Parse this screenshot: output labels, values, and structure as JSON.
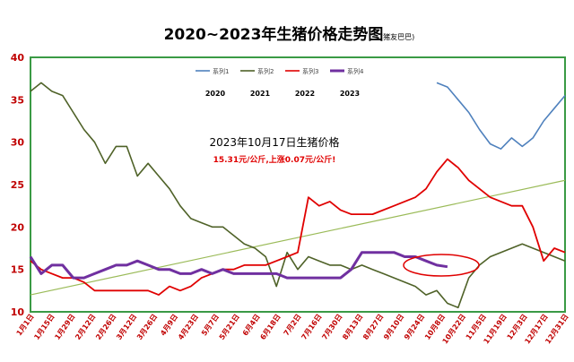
{
  "chart_data": {
    "type": "line",
    "title": "2020~2023年生猪价格走势图",
    "title_note": "(猪友巴巴)",
    "ylim": [
      10,
      40
    ],
    "y_ticks": [
      10,
      15,
      20,
      25,
      30,
      35,
      40
    ],
    "x_ticks": [
      "1月1日",
      "1月15日",
      "1月29日",
      "2月12日",
      "2月26日",
      "3月12日",
      "3月26日",
      "4月9日",
      "4月23日",
      "5月7日",
      "5月21日",
      "6月4日",
      "6月18日",
      "7月2日",
      "7月16日",
      "7月30日",
      "8月13日",
      "8月27日",
      "9月10日",
      "9月24日",
      "10月8日",
      "10月22日",
      "11月5日",
      "11月19日",
      "12月3日",
      "12月17日",
      "12月31日"
    ],
    "grid": false,
    "legend_position": "top-center",
    "series": [
      {
        "name": "系列1",
        "year_label": "2020",
        "color": "#4f81bd",
        "x": [
          0.76,
          0.78,
          0.8,
          0.82,
          0.84,
          0.86,
          0.88,
          0.9,
          0.92,
          0.93,
          0.94,
          0.96,
          0.98,
          1.0
        ],
        "values": [
          37,
          36.5,
          35,
          33.5,
          31.5,
          29.8,
          29.2,
          30.5,
          29.5,
          30,
          30.5,
          32.5,
          34,
          35.5
        ]
      },
      {
        "name": "系列2",
        "year_label": "2021",
        "color": "#4f6228",
        "x": [
          0.0,
          0.02,
          0.04,
          0.06,
          0.08,
          0.1,
          0.12,
          0.14,
          0.16,
          0.18,
          0.2,
          0.22,
          0.24,
          0.26,
          0.28,
          0.3,
          0.32,
          0.34,
          0.36,
          0.38,
          0.4,
          0.42,
          0.44,
          0.46,
          0.48,
          0.5,
          0.52,
          0.54,
          0.56,
          0.58,
          0.6,
          0.62,
          0.64,
          0.66,
          0.68,
          0.7,
          0.72,
          0.74,
          0.76,
          0.78,
          0.8,
          0.82,
          0.84,
          0.86,
          0.88,
          0.9,
          0.92,
          0.94,
          0.96,
          0.98,
          1.0
        ],
        "values": [
          36,
          37,
          36,
          35.5,
          33.5,
          31.5,
          30,
          27.5,
          29.5,
          29.5,
          26,
          27.5,
          26,
          24.5,
          22.5,
          21,
          20.5,
          20,
          20,
          19,
          18,
          17.5,
          16.5,
          13,
          17,
          15,
          16.5,
          16,
          15.5,
          15.5,
          15,
          15.5,
          15,
          14.5,
          14,
          13.5,
          13,
          12,
          12.5,
          11,
          10.5,
          14,
          15.5,
          16.5,
          17,
          17.5,
          18,
          17.5,
          17,
          16.5,
          16
        ]
      },
      {
        "name": "系列3",
        "year_label": "2022",
        "color": "#e00000",
        "x": [
          0.0,
          0.02,
          0.04,
          0.06,
          0.08,
          0.1,
          0.12,
          0.14,
          0.16,
          0.18,
          0.2,
          0.22,
          0.24,
          0.26,
          0.28,
          0.3,
          0.32,
          0.34,
          0.36,
          0.38,
          0.4,
          0.42,
          0.44,
          0.46,
          0.48,
          0.5,
          0.52,
          0.54,
          0.56,
          0.58,
          0.6,
          0.62,
          0.64,
          0.66,
          0.68,
          0.7,
          0.72,
          0.74,
          0.76,
          0.78,
          0.8,
          0.82,
          0.84,
          0.86,
          0.88,
          0.9,
          0.92,
          0.94,
          0.96,
          0.98,
          1.0
        ],
        "values": [
          16,
          15,
          14.5,
          14,
          14,
          13.5,
          12.5,
          12.5,
          12.5,
          12.5,
          12.5,
          12.5,
          12,
          13,
          12.5,
          13,
          14,
          14.5,
          15,
          15,
          15.5,
          15.5,
          15.5,
          16,
          16.5,
          17,
          23.5,
          22.5,
          23,
          22,
          21.5,
          21.5,
          21.5,
          22,
          22.5,
          23,
          23.5,
          24.5,
          26.5,
          28,
          27,
          25.5,
          24.5,
          23.5,
          23,
          22.5,
          22.5,
          20,
          16,
          17.5,
          17
        ]
      },
      {
        "name": "系列4",
        "year_label": "2023",
        "color": "#7030a0",
        "x": [
          0.0,
          0.02,
          0.04,
          0.06,
          0.08,
          0.1,
          0.12,
          0.14,
          0.16,
          0.18,
          0.2,
          0.22,
          0.24,
          0.26,
          0.28,
          0.3,
          0.32,
          0.34,
          0.36,
          0.38,
          0.4,
          0.42,
          0.44,
          0.46,
          0.48,
          0.5,
          0.52,
          0.54,
          0.56,
          0.58,
          0.6,
          0.62,
          0.64,
          0.66,
          0.68,
          0.7,
          0.72,
          0.74,
          0.76,
          0.78
        ],
        "values": [
          16.5,
          14.5,
          15.5,
          15.5,
          14,
          14,
          14.5,
          15,
          15.5,
          15.5,
          16,
          15.5,
          15,
          15,
          14.5,
          14.5,
          15,
          14.5,
          15,
          14.5,
          14.5,
          14.5,
          14.5,
          14.5,
          14,
          14,
          14,
          14,
          14,
          14,
          15,
          17,
          17,
          17,
          17,
          16.5,
          16.5,
          16,
          15.5,
          15.31
        ]
      }
    ],
    "annotation": {
      "title": "2023年10月17日生猪价格",
      "subtitle": "15.31元/公斤,上涨0.07元/公斤!"
    },
    "trendline": {
      "color": "#9bbb59",
      "x": [
        0,
        1
      ],
      "values": [
        12,
        25.5
      ]
    }
  }
}
